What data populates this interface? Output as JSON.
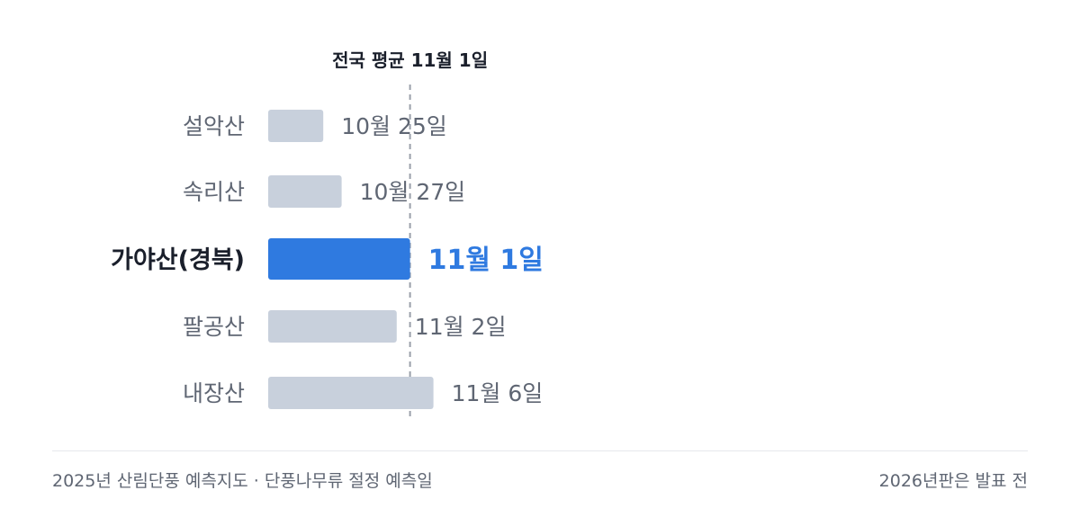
{
  "chart_data": {
    "type": "bar",
    "orientation": "horizontal",
    "title": "",
    "xlabel": "",
    "ylabel": "",
    "categories": [
      "설악산",
      "속리산",
      "가야산(경북)",
      "팔공산",
      "내장산"
    ],
    "values": [
      "10-25",
      "10-27",
      "11-01",
      "11-02",
      "11-06"
    ],
    "value_labels": [
      "10월 25일",
      "10월 27일",
      "11월 1일",
      "11월 2일",
      "11월 6일"
    ],
    "highlight_index": 2,
    "reference_line": {
      "value": "11-01",
      "label": "전국 평균 11월 1일"
    },
    "colors": {
      "bar": "#c8d0dc",
      "highlight": "#2f7ae0",
      "text": "#5f6673",
      "highlight_text": "#1a1f2b",
      "reference": "#9aa0aa"
    },
    "grid": false,
    "legend": "none"
  },
  "footer": {
    "left": "2025년 산림단풍 예측지도 · 단풍나무류 절정 예측일",
    "right": "2026년판은 발표 전"
  }
}
